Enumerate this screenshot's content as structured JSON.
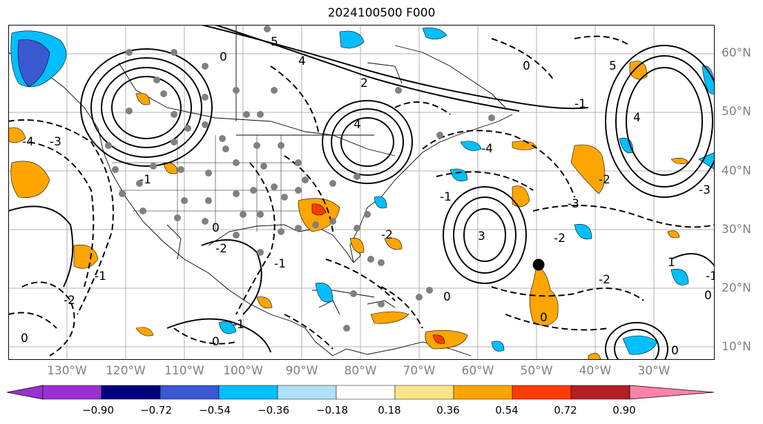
{
  "title": "2024100500 F000",
  "lat_labels": [
    "60°N",
    "50°N",
    "40°N",
    "30°N",
    "20°N",
    "10°N"
  ],
  "lon_labels": [
    "130°W",
    "120°W",
    "110°W",
    "100°W",
    "90°W",
    "80°W",
    "70°W",
    "60°W",
    "50°W",
    "40°W",
    "30°W"
  ],
  "contour_labels": [
    "0",
    "1",
    "2",
    "3",
    "4",
    "5",
    "-1",
    "-2",
    "-3",
    "-4"
  ],
  "colorbar": {
    "ticks": [
      "−0.90",
      "−0.72",
      "−0.54",
      "−0.36",
      "−0.18",
      "0.18",
      "0.36",
      "0.54",
      "0.72",
      "0.90"
    ],
    "colors": [
      "#9b30d0",
      "#00007f",
      "#3a58d0",
      "#00bfff",
      "#afe0fa",
      "#ffffff",
      "#ffe58a",
      "#ffa500",
      "#ff3c00",
      "#b21f24",
      "#ff82aa"
    ]
  },
  "map": {
    "extent": {
      "lon": [
        -140,
        -18
      ],
      "lat": [
        7,
        65
      ]
    },
    "gridlines": true,
    "marker_color": "#000000",
    "station_color": "#808080"
  }
}
